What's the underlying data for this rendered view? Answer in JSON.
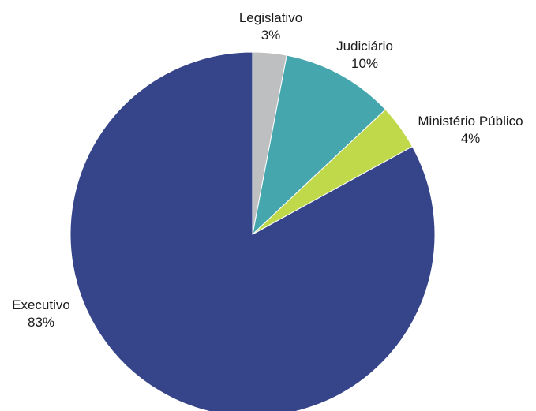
{
  "chart_data": {
    "type": "pie",
    "title": "",
    "start_angle_deg": 0,
    "direction": "clockwise",
    "slices": [
      {
        "label": "Legislativo",
        "value": 3,
        "value_label": "3%",
        "color": "#bebfc1"
      },
      {
        "label": "Judiciário",
        "value": 10,
        "value_label": "10%",
        "color": "#46a6ae"
      },
      {
        "label": "Ministério Público",
        "value": 4,
        "value_label": "4%",
        "color": "#bfd94a"
      },
      {
        "label": "Executivo",
        "value": 83,
        "value_label": "83%",
        "color": "#364489"
      }
    ],
    "legend": "none",
    "labels_position": "outside"
  }
}
